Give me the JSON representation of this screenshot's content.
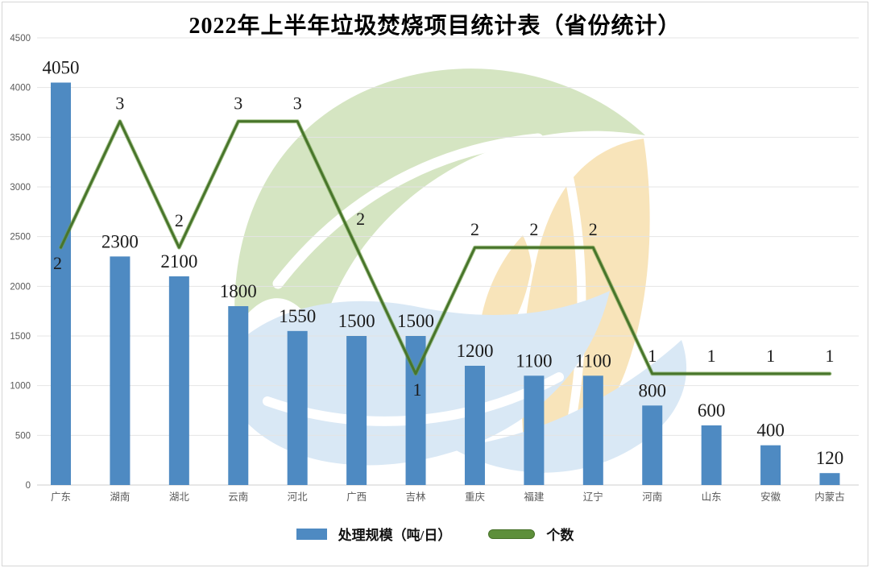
{
  "chart_data": {
    "type": "combo-bar-line",
    "title": "2022年上半年垃圾焚烧项目统计表（省份统计）",
    "categories": [
      "广东",
      "湖南",
      "湖北",
      "云南",
      "河北",
      "广西",
      "吉林",
      "重庆",
      "福建",
      "辽宁",
      "河南",
      "山东",
      "安徽",
      "内蒙古"
    ],
    "series": [
      {
        "name": "处理规模（吨/日）",
        "type": "bar",
        "color": "#4E8AC2",
        "values": [
          4050,
          2300,
          2100,
          1800,
          1550,
          1500,
          1500,
          1200,
          1100,
          1100,
          800,
          600,
          400,
          120
        ]
      },
      {
        "name": "个数",
        "type": "line",
        "color": "#4A772C",
        "values": [
          2,
          3,
          2,
          3,
          3,
          2,
          1,
          2,
          2,
          2,
          1,
          1,
          1,
          1
        ]
      }
    ],
    "y_axis": {
      "min": 0,
      "max": 4500,
      "step": 500,
      "tick_labels": [
        "0",
        "500",
        "1000",
        "1500",
        "2000",
        "2500",
        "3000",
        "3500",
        "4000",
        "4500"
      ]
    },
    "secondary_axis_visible": false,
    "grid": true,
    "data_labels": true,
    "legend_position": "bottom"
  },
  "legend": {
    "bar_label": "处理规模（吨/日）",
    "line_label": "个数"
  },
  "colors": {
    "bar": "#4E8AC2",
    "line_dark": "#48752B",
    "line_light": "#6FA046",
    "gridline": "#E4E4E4",
    "axis_text": "#595959",
    "frame_border": "#D6D6D6"
  },
  "watermark": {
    "name": "leaf-swirl-eco-logo",
    "colors": {
      "green": "#D5E5C2",
      "orange": "#F8E4BA",
      "blue": "#D9E8F5",
      "vein": "#FFFFFF"
    }
  }
}
